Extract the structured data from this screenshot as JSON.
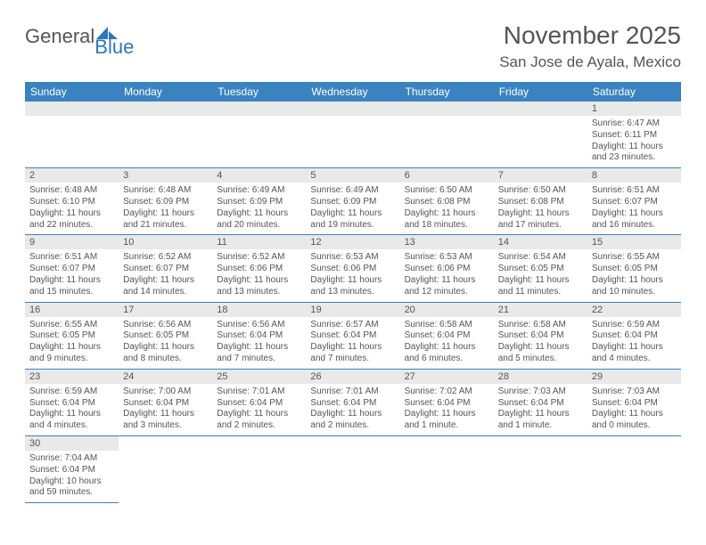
{
  "logo": {
    "general": "General",
    "blue": "Blue",
    "sail_color": "#2f77b9"
  },
  "title": "November 2025",
  "location": "San Jose de Ayala, Mexico",
  "colors": {
    "header_bg": "#3b83c0",
    "day_head_bg": "#e9e9e9",
    "row_border": "#3b83c0",
    "text": "#555555",
    "white": "#ffffff"
  },
  "dow": [
    "Sunday",
    "Monday",
    "Tuesday",
    "Wednesday",
    "Thursday",
    "Friday",
    "Saturday"
  ],
  "weeks": [
    [
      null,
      null,
      null,
      null,
      null,
      null,
      {
        "d": "1",
        "sr": "Sunrise: 6:47 AM",
        "ss": "Sunset: 6:11 PM",
        "dl1": "Daylight: 11 hours",
        "dl2": "and 23 minutes."
      }
    ],
    [
      {
        "d": "2",
        "sr": "Sunrise: 6:48 AM",
        "ss": "Sunset: 6:10 PM",
        "dl1": "Daylight: 11 hours",
        "dl2": "and 22 minutes."
      },
      {
        "d": "3",
        "sr": "Sunrise: 6:48 AM",
        "ss": "Sunset: 6:09 PM",
        "dl1": "Daylight: 11 hours",
        "dl2": "and 21 minutes."
      },
      {
        "d": "4",
        "sr": "Sunrise: 6:49 AM",
        "ss": "Sunset: 6:09 PM",
        "dl1": "Daylight: 11 hours",
        "dl2": "and 20 minutes."
      },
      {
        "d": "5",
        "sr": "Sunrise: 6:49 AM",
        "ss": "Sunset: 6:09 PM",
        "dl1": "Daylight: 11 hours",
        "dl2": "and 19 minutes."
      },
      {
        "d": "6",
        "sr": "Sunrise: 6:50 AM",
        "ss": "Sunset: 6:08 PM",
        "dl1": "Daylight: 11 hours",
        "dl2": "and 18 minutes."
      },
      {
        "d": "7",
        "sr": "Sunrise: 6:50 AM",
        "ss": "Sunset: 6:08 PM",
        "dl1": "Daylight: 11 hours",
        "dl2": "and 17 minutes."
      },
      {
        "d": "8",
        "sr": "Sunrise: 6:51 AM",
        "ss": "Sunset: 6:07 PM",
        "dl1": "Daylight: 11 hours",
        "dl2": "and 16 minutes."
      }
    ],
    [
      {
        "d": "9",
        "sr": "Sunrise: 6:51 AM",
        "ss": "Sunset: 6:07 PM",
        "dl1": "Daylight: 11 hours",
        "dl2": "and 15 minutes."
      },
      {
        "d": "10",
        "sr": "Sunrise: 6:52 AM",
        "ss": "Sunset: 6:07 PM",
        "dl1": "Daylight: 11 hours",
        "dl2": "and 14 minutes."
      },
      {
        "d": "11",
        "sr": "Sunrise: 6:52 AM",
        "ss": "Sunset: 6:06 PM",
        "dl1": "Daylight: 11 hours",
        "dl2": "and 13 minutes."
      },
      {
        "d": "12",
        "sr": "Sunrise: 6:53 AM",
        "ss": "Sunset: 6:06 PM",
        "dl1": "Daylight: 11 hours",
        "dl2": "and 13 minutes."
      },
      {
        "d": "13",
        "sr": "Sunrise: 6:53 AM",
        "ss": "Sunset: 6:06 PM",
        "dl1": "Daylight: 11 hours",
        "dl2": "and 12 minutes."
      },
      {
        "d": "14",
        "sr": "Sunrise: 6:54 AM",
        "ss": "Sunset: 6:05 PM",
        "dl1": "Daylight: 11 hours",
        "dl2": "and 11 minutes."
      },
      {
        "d": "15",
        "sr": "Sunrise: 6:55 AM",
        "ss": "Sunset: 6:05 PM",
        "dl1": "Daylight: 11 hours",
        "dl2": "and 10 minutes."
      }
    ],
    [
      {
        "d": "16",
        "sr": "Sunrise: 6:55 AM",
        "ss": "Sunset: 6:05 PM",
        "dl1": "Daylight: 11 hours",
        "dl2": "and 9 minutes."
      },
      {
        "d": "17",
        "sr": "Sunrise: 6:56 AM",
        "ss": "Sunset: 6:05 PM",
        "dl1": "Daylight: 11 hours",
        "dl2": "and 8 minutes."
      },
      {
        "d": "18",
        "sr": "Sunrise: 6:56 AM",
        "ss": "Sunset: 6:04 PM",
        "dl1": "Daylight: 11 hours",
        "dl2": "and 7 minutes."
      },
      {
        "d": "19",
        "sr": "Sunrise: 6:57 AM",
        "ss": "Sunset: 6:04 PM",
        "dl1": "Daylight: 11 hours",
        "dl2": "and 7 minutes."
      },
      {
        "d": "20",
        "sr": "Sunrise: 6:58 AM",
        "ss": "Sunset: 6:04 PM",
        "dl1": "Daylight: 11 hours",
        "dl2": "and 6 minutes."
      },
      {
        "d": "21",
        "sr": "Sunrise: 6:58 AM",
        "ss": "Sunset: 6:04 PM",
        "dl1": "Daylight: 11 hours",
        "dl2": "and 5 minutes."
      },
      {
        "d": "22",
        "sr": "Sunrise: 6:59 AM",
        "ss": "Sunset: 6:04 PM",
        "dl1": "Daylight: 11 hours",
        "dl2": "and 4 minutes."
      }
    ],
    [
      {
        "d": "23",
        "sr": "Sunrise: 6:59 AM",
        "ss": "Sunset: 6:04 PM",
        "dl1": "Daylight: 11 hours",
        "dl2": "and 4 minutes."
      },
      {
        "d": "24",
        "sr": "Sunrise: 7:00 AM",
        "ss": "Sunset: 6:04 PM",
        "dl1": "Daylight: 11 hours",
        "dl2": "and 3 minutes."
      },
      {
        "d": "25",
        "sr": "Sunrise: 7:01 AM",
        "ss": "Sunset: 6:04 PM",
        "dl1": "Daylight: 11 hours",
        "dl2": "and 2 minutes."
      },
      {
        "d": "26",
        "sr": "Sunrise: 7:01 AM",
        "ss": "Sunset: 6:04 PM",
        "dl1": "Daylight: 11 hours",
        "dl2": "and 2 minutes."
      },
      {
        "d": "27",
        "sr": "Sunrise: 7:02 AM",
        "ss": "Sunset: 6:04 PM",
        "dl1": "Daylight: 11 hours",
        "dl2": "and 1 minute."
      },
      {
        "d": "28",
        "sr": "Sunrise: 7:03 AM",
        "ss": "Sunset: 6:04 PM",
        "dl1": "Daylight: 11 hours",
        "dl2": "and 1 minute."
      },
      {
        "d": "29",
        "sr": "Sunrise: 7:03 AM",
        "ss": "Sunset: 6:04 PM",
        "dl1": "Daylight: 11 hours",
        "dl2": "and 0 minutes."
      }
    ],
    [
      {
        "d": "30",
        "sr": "Sunrise: 7:04 AM",
        "ss": "Sunset: 6:04 PM",
        "dl1": "Daylight: 10 hours",
        "dl2": "and 59 minutes."
      },
      null,
      null,
      null,
      null,
      null,
      null
    ]
  ]
}
